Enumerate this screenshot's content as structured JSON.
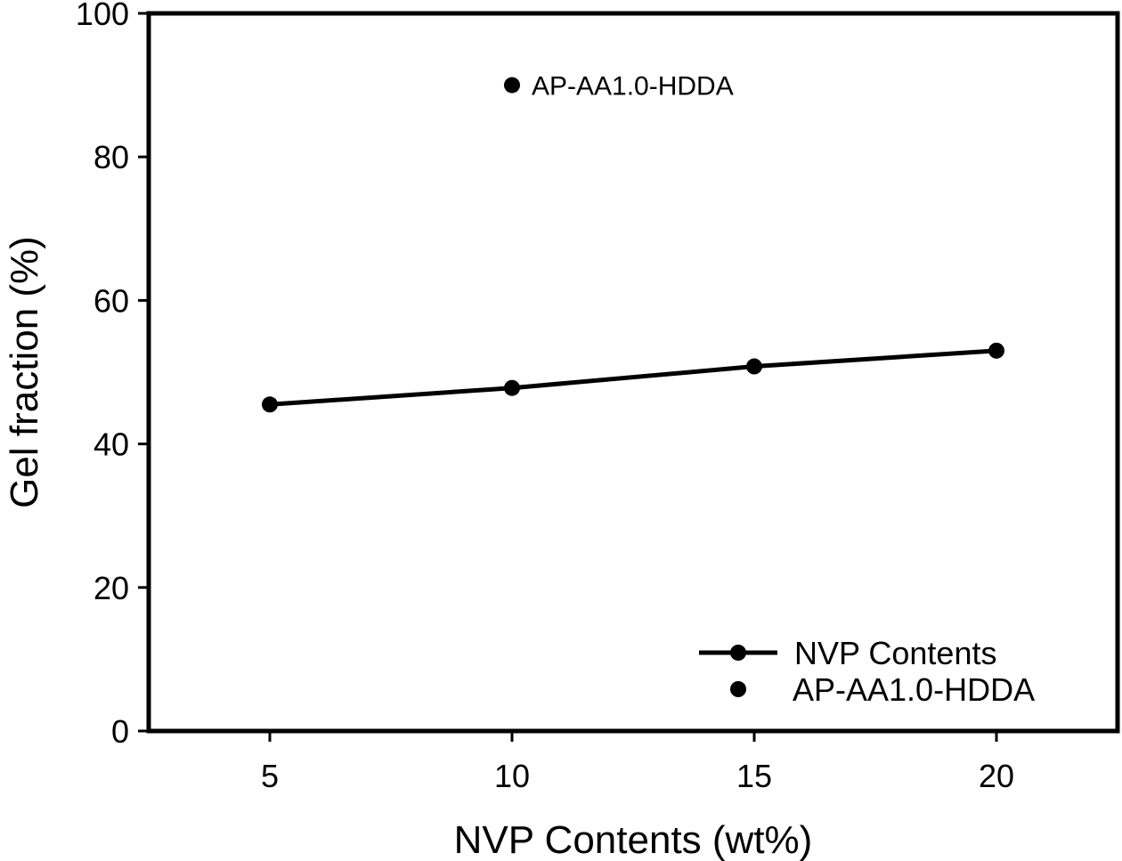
{
  "chart_data": {
    "type": "line",
    "title": "",
    "xlabel": "NVP Contents (wt%)",
    "ylabel": "Gel fraction (%)",
    "xlim": [
      2.5,
      22.5
    ],
    "ylim": [
      0,
      100
    ],
    "xticks": [
      5,
      10,
      15,
      20
    ],
    "yticks": [
      0,
      20,
      40,
      60,
      80,
      100
    ],
    "grid": false,
    "legend_position": "bottom-right",
    "series": [
      {
        "name": "NVP Contents",
        "style": "line-marker",
        "color": "#000000",
        "x": [
          5,
          10,
          15,
          20
        ],
        "y": [
          45.5,
          47.8,
          50.8,
          53.0
        ]
      },
      {
        "name": "AP-AA1.0-HDDA",
        "style": "marker",
        "color": "#000000",
        "x": [
          10
        ],
        "y": [
          90
        ]
      }
    ],
    "annotations": [
      {
        "text": "AP-AA1.0-HDDA",
        "x": 10,
        "y": 90
      }
    ]
  }
}
